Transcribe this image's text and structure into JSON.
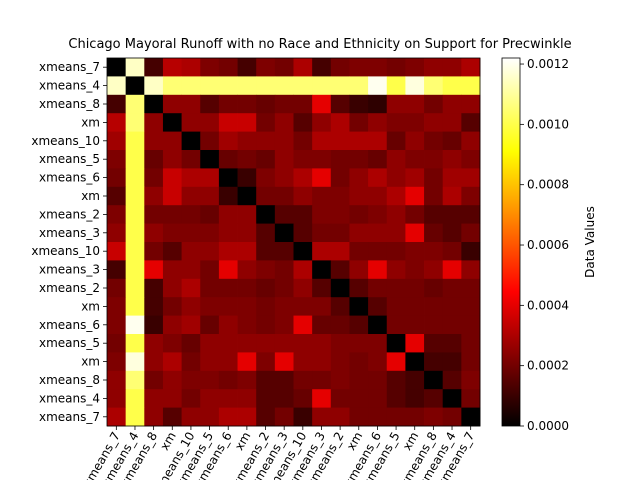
{
  "chart_data": {
    "type": "heatmap",
    "title": "Chicago Mayoral Runoff with no Race and Ethnicity on Support for Precwinkle",
    "row_labels": [
      "xmeans_7",
      "xmeans_4",
      "xmeans_8",
      "xm",
      "xmeans_10",
      "xmeans_5",
      "xmeans_6",
      "xm",
      "xmeans_2",
      "xmeans_3",
      "xmeans_10",
      "xmeans_3",
      "xmeans_2",
      "xm",
      "xmeans_6",
      "xmeans_5",
      "xm",
      "xmeans_8",
      "xmeans_4",
      "xmeans_7"
    ],
    "col_labels": [
      "xmeans_7",
      "xmeans_4",
      "xmeans_8",
      "xm",
      "xmeans_10",
      "xmeans_5",
      "xmeans_6",
      "xm",
      "xmeans_2",
      "xmeans_3",
      "xmeans_10",
      "xmeans_3",
      "xmeans_2",
      "xm",
      "xmeans_6",
      "xmeans_5",
      "xm",
      "xmeans_8",
      "xmeans_4",
      "xmeans_7"
    ],
    "values": [
      [
        0.0,
        0.00115,
        0.00012,
        0.00032,
        0.0003,
        0.00022,
        0.0002,
        0.00012,
        0.00022,
        0.0002,
        0.0003,
        0.00012,
        0.0002,
        0.00022,
        0.00022,
        0.0002,
        0.00022,
        0.00025,
        0.00025,
        0.0003
      ],
      [
        0.00115,
        0.0,
        0.00115,
        0.00105,
        0.00105,
        0.00105,
        0.00105,
        0.00105,
        0.00105,
        0.00105,
        0.00105,
        0.00105,
        0.00105,
        0.00105,
        0.0012,
        0.001,
        0.00118,
        0.00105,
        0.001,
        0.001
      ],
      [
        0.00012,
        0.00105,
        0.0,
        0.00025,
        0.00025,
        0.00015,
        0.0002,
        0.0002,
        0.00018,
        0.0002,
        0.0002,
        0.0004,
        0.00015,
        0.0001,
        8e-05,
        0.00025,
        0.00025,
        0.0002,
        0.00025,
        0.00025
      ],
      [
        0.00032,
        0.00105,
        0.00025,
        0.0,
        0.00025,
        0.00025,
        0.00035,
        0.00035,
        0.0002,
        0.00025,
        0.00015,
        0.00025,
        0.0003,
        0.0002,
        0.00025,
        0.00022,
        0.00022,
        0.00025,
        0.00025,
        0.00015
      ],
      [
        0.00028,
        0.001,
        0.00025,
        0.00025,
        0.0,
        0.0002,
        0.00028,
        0.00025,
        0.00025,
        0.00025,
        0.0002,
        0.0003,
        0.0003,
        0.0003,
        0.0003,
        0.00018,
        0.00025,
        0.0002,
        0.00018,
        0.00025
      ],
      [
        0.00022,
        0.001,
        0.00018,
        0.00025,
        0.0002,
        0.0,
        0.00018,
        0.0002,
        0.00018,
        0.00025,
        0.00022,
        0.00022,
        0.0002,
        0.0002,
        0.00018,
        0.00025,
        0.00022,
        0.00022,
        0.00025,
        0.00022
      ],
      [
        0.0002,
        0.001,
        0.0002,
        0.00035,
        0.0003,
        0.0003,
        0.0,
        0.0001,
        0.00022,
        0.00025,
        0.0003,
        0.0004,
        0.0002,
        0.00025,
        0.0003,
        0.00025,
        0.00028,
        0.0002,
        0.00028,
        0.00028
      ],
      [
        0.00015,
        0.001,
        0.00025,
        0.00035,
        0.00025,
        0.00025,
        0.0001,
        0.0,
        0.0002,
        0.0002,
        0.00025,
        0.00022,
        0.00022,
        0.00025,
        0.00025,
        0.0003,
        0.0004,
        0.0002,
        0.0003,
        0.00022
      ],
      [
        0.00022,
        0.001,
        0.0002,
        0.0002,
        0.0002,
        0.00018,
        0.00025,
        0.00025,
        0.0,
        0.00015,
        0.00015,
        0.00022,
        0.00022,
        0.0002,
        0.00022,
        0.00025,
        0.0002,
        0.00015,
        0.00015,
        0.00015
      ],
      [
        0.00025,
        0.001,
        0.00025,
        0.00022,
        0.00022,
        0.00022,
        0.00025,
        0.00025,
        0.00015,
        0.0,
        0.00015,
        0.0002,
        0.0002,
        0.00025,
        0.00025,
        0.00025,
        0.0004,
        0.00018,
        0.00015,
        0.0002
      ],
      [
        0.00035,
        0.001,
        0.0002,
        0.00015,
        0.00025,
        0.00025,
        0.0003,
        0.0003,
        0.00015,
        0.00015,
        0.0,
        0.0003,
        0.0003,
        0.0002,
        0.0002,
        0.0002,
        0.00022,
        0.00022,
        0.0002,
        0.0001
      ],
      [
        0.00012,
        0.001,
        0.0004,
        0.00025,
        0.00025,
        0.0002,
        0.0004,
        0.00025,
        0.00022,
        0.0002,
        0.0003,
        0.0,
        0.00015,
        0.00025,
        0.0004,
        0.00025,
        0.00022,
        0.00025,
        0.0004,
        0.00025
      ],
      [
        0.0002,
        0.001,
        0.00012,
        0.00025,
        0.0003,
        0.0002,
        0.0002,
        0.0002,
        0.00018,
        0.0002,
        0.00025,
        0.00015,
        0.0,
        0.00015,
        0.0002,
        0.0002,
        0.0002,
        0.00018,
        0.0002,
        0.0002
      ],
      [
        0.00022,
        0.001,
        0.00012,
        0.0002,
        0.00025,
        0.00022,
        0.00022,
        0.00022,
        0.0002,
        0.00022,
        0.00022,
        0.00022,
        0.00015,
        0.0,
        0.00015,
        0.0002,
        0.0002,
        0.0002,
        0.0002,
        0.0002
      ],
      [
        0.00022,
        0.0012,
        0.0001,
        0.00025,
        0.00028,
        0.00018,
        0.00025,
        0.00022,
        0.0002,
        0.00022,
        0.0004,
        0.00018,
        0.00018,
        0.00015,
        0.0,
        0.0002,
        0.0002,
        0.0002,
        0.0002,
        0.0002
      ],
      [
        0.0002,
        0.001,
        0.00025,
        0.00022,
        0.00018,
        0.00025,
        0.00025,
        0.00025,
        0.00025,
        0.00025,
        0.00025,
        0.00025,
        0.00022,
        0.00022,
        0.00022,
        0.0,
        0.0004,
        0.00015,
        0.00015,
        0.0002
      ],
      [
        0.00022,
        0.00118,
        0.00025,
        0.0003,
        0.0002,
        0.00025,
        0.00025,
        0.0004,
        0.00022,
        0.0004,
        0.00025,
        0.00025,
        0.00022,
        0.0002,
        0.00022,
        0.0004,
        0.0,
        0.00012,
        0.00012,
        0.0002
      ],
      [
        0.00025,
        0.00105,
        0.0002,
        0.00025,
        0.00022,
        0.00022,
        0.0002,
        0.00022,
        0.00015,
        0.00015,
        0.0002,
        0.0002,
        0.00022,
        0.0002,
        0.0002,
        0.00015,
        0.00012,
        0.0,
        0.00015,
        0.00022
      ],
      [
        0.00025,
        0.001,
        0.00025,
        0.00025,
        0.0002,
        0.00025,
        0.00025,
        0.00025,
        0.00015,
        0.00015,
        0.00018,
        0.0004,
        0.0002,
        0.0002,
        0.0002,
        0.00015,
        0.00012,
        0.00015,
        0.0,
        0.0002
      ],
      [
        0.0003,
        0.001,
        0.00025,
        0.00015,
        0.00025,
        0.00025,
        0.0003,
        0.0003,
        0.00015,
        0.0002,
        0.0001,
        0.00025,
        0.00025,
        0.0002,
        0.0002,
        0.0002,
        0.0002,
        0.00022,
        0.0002,
        0.0
      ]
    ],
    "colorbar": {
      "label": "Data Values",
      "range": [
        0.0,
        0.00122
      ],
      "ticks": [
        0.0,
        0.0002,
        0.0004,
        0.0006,
        0.0008,
        0.001,
        0.0012
      ],
      "tick_labels": [
        "0.0000",
        "0.0002",
        "0.0004",
        "0.0006",
        "0.0008",
        "0.0010",
        "0.0012"
      ],
      "colormap": "hot"
    }
  }
}
